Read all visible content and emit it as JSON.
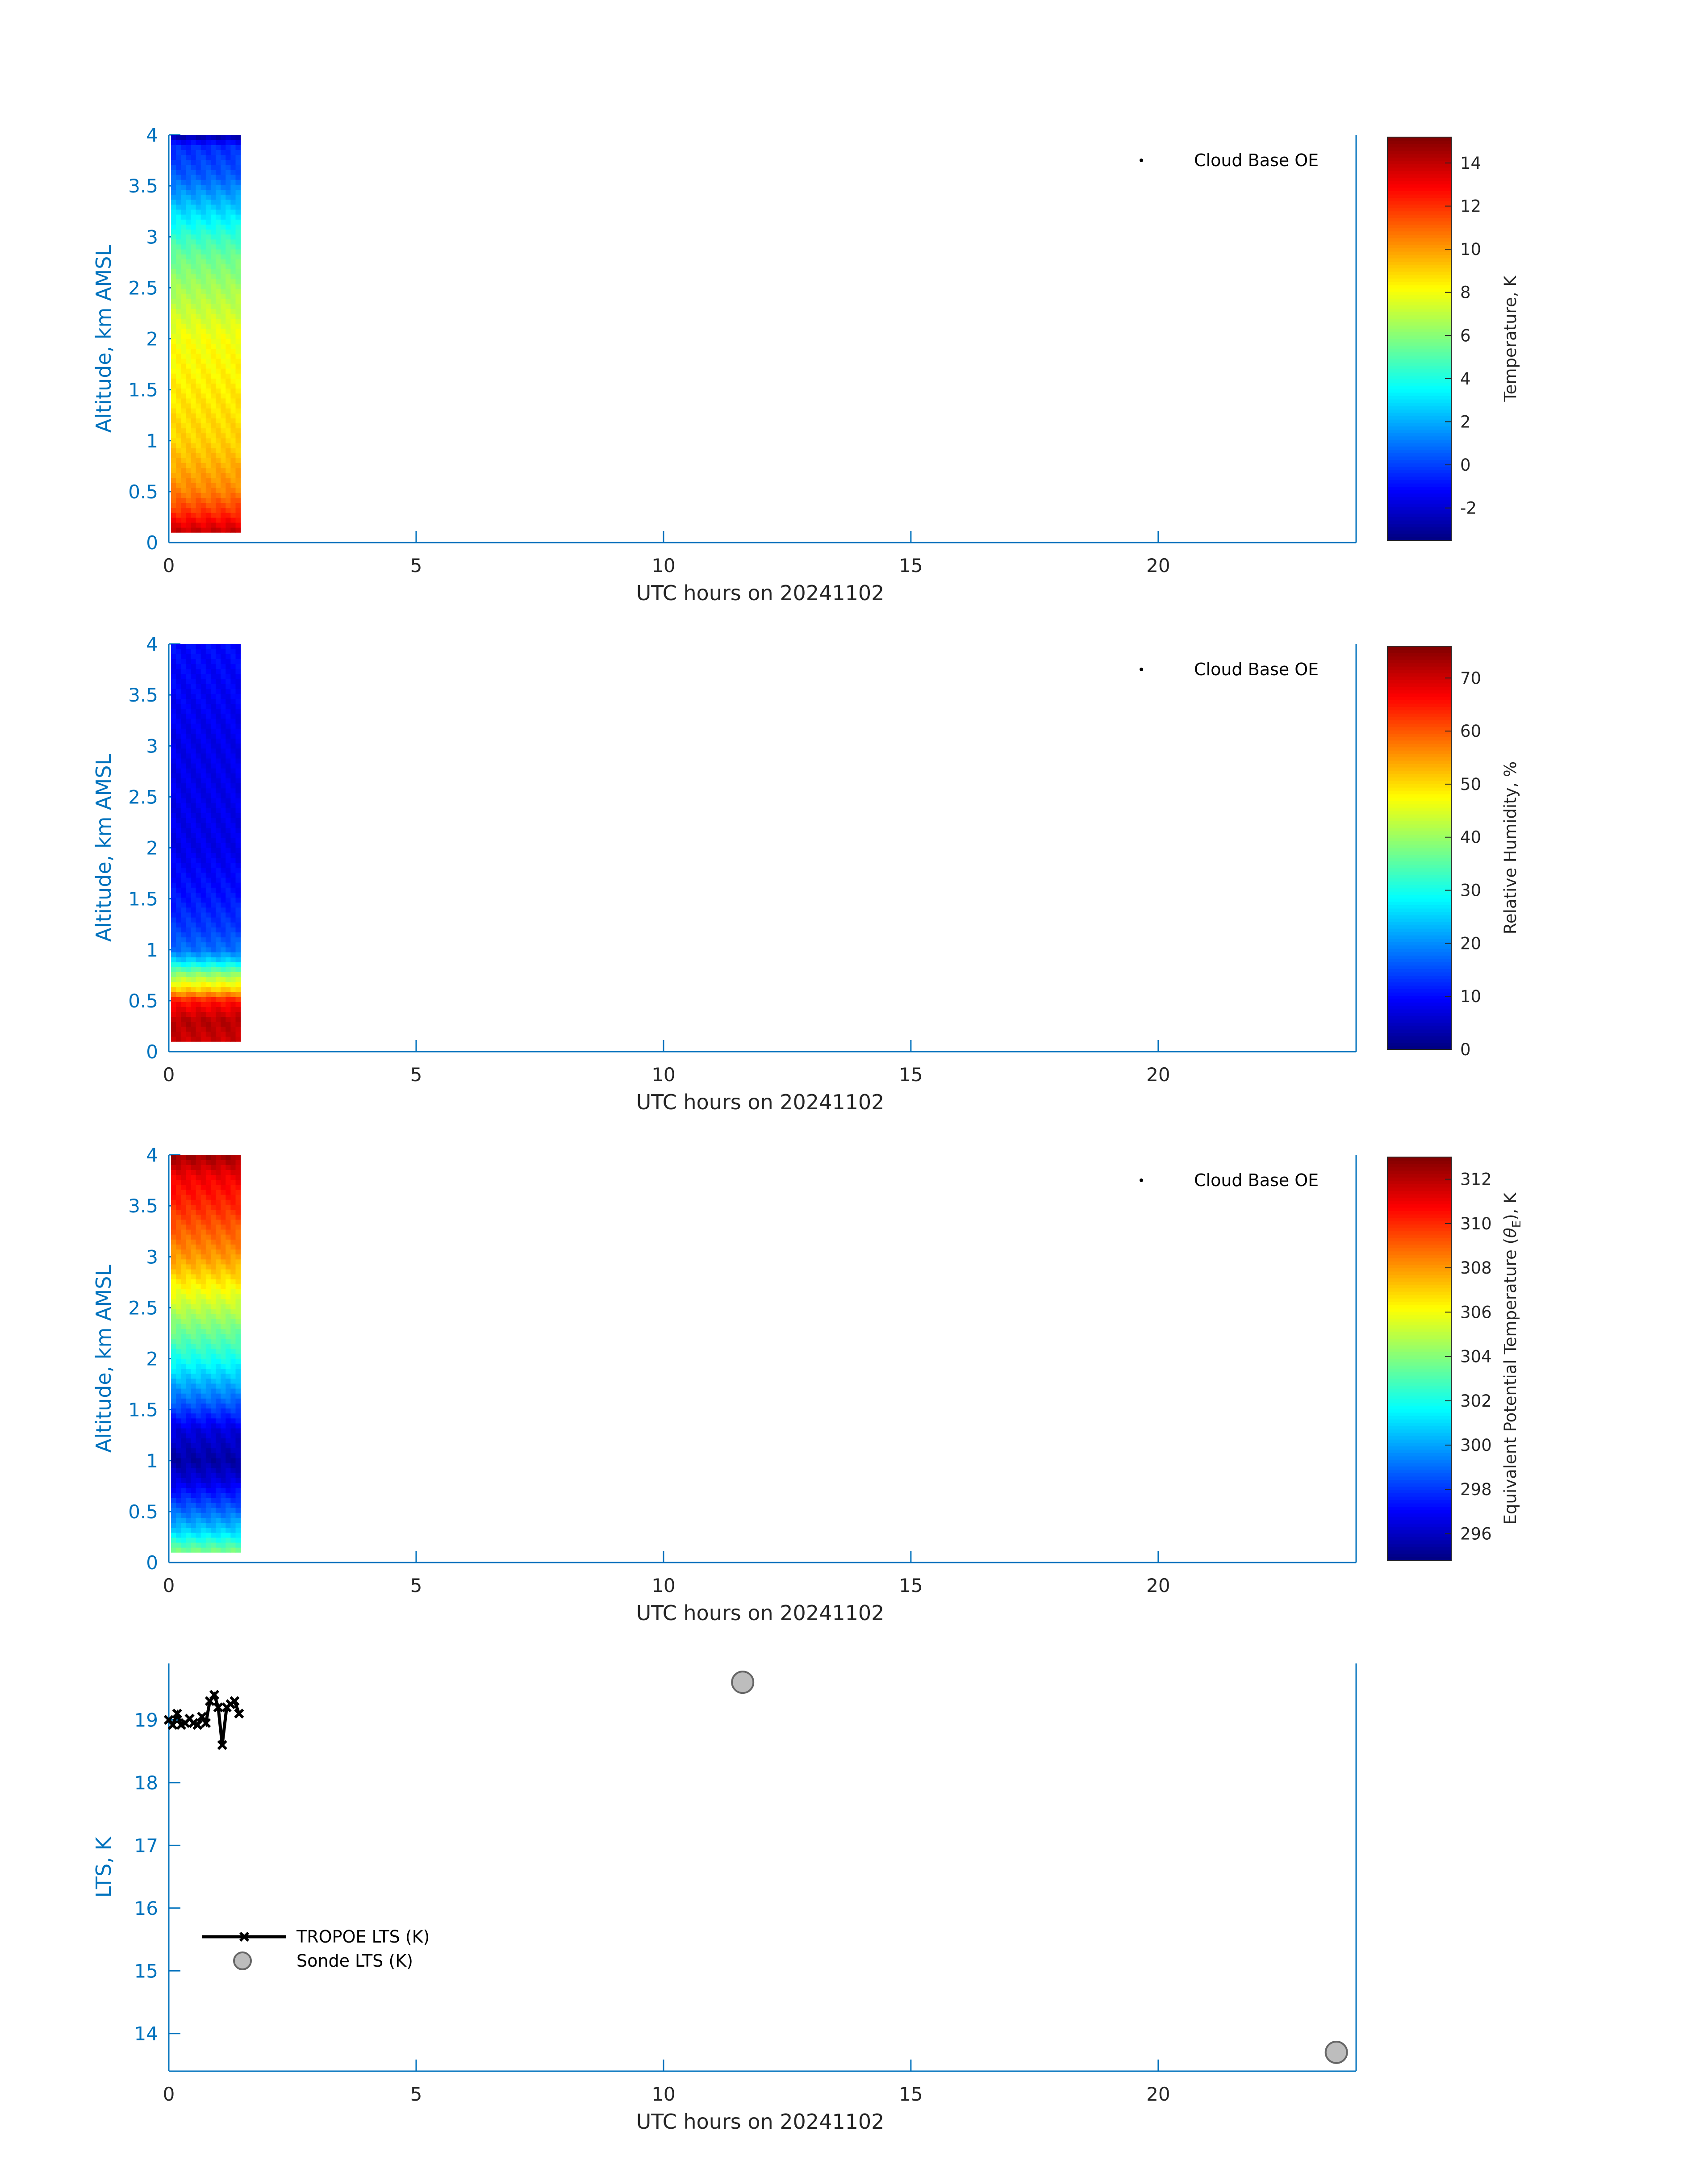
{
  "colors": {
    "axis": "#0072BD",
    "text_dark": "#262626",
    "tropoe_line": "#000000",
    "sonde_fill": "#BDBDBD",
    "sonde_edge": "#666666"
  },
  "chart_data": [
    {
      "type": "heatmap",
      "panel": "temperature",
      "xlabel": "UTC hours on 20241102",
      "ylabel": "Altitude, km AMSL",
      "xlim": [
        0,
        24
      ],
      "ylim": [
        0,
        4
      ],
      "xticks": [
        "0",
        "5",
        "10",
        "15",
        "20"
      ],
      "yticks": [
        "0",
        "0.5",
        "1",
        "1.5",
        "2",
        "2.5",
        "3",
        "3.5",
        "4"
      ],
      "colormap": "jet",
      "clim": [
        -3.5,
        15.2
      ],
      "colorbar_label": "Temperature, K",
      "colorbar_ticks": [
        "-2",
        "0",
        "2",
        "4",
        "6",
        "8",
        "10",
        "12",
        "14"
      ],
      "data_time_range_hours": [
        0,
        1.45
      ],
      "profile_altitude_km": [
        0.1,
        0.3,
        0.5,
        0.8,
        1.0,
        1.5,
        2.0,
        2.5,
        2.8,
        3.0,
        3.3,
        3.6,
        3.9,
        4.0
      ],
      "profile_values": [
        14,
        12,
        10.5,
        9.5,
        9,
        8.5,
        8,
        6.5,
        5.5,
        4.5,
        2.5,
        0.5,
        -0.5,
        -3
      ],
      "legend": [
        {
          "label": "Cloud Base OE",
          "marker": "point"
        }
      ],
      "legend_position": "top-right"
    },
    {
      "type": "heatmap",
      "panel": "relative_humidity",
      "xlabel": "UTC hours on 20241102",
      "ylabel": "Altitude, km AMSL",
      "xlim": [
        0,
        24
      ],
      "ylim": [
        0,
        4
      ],
      "xticks": [
        "0",
        "5",
        "10",
        "15",
        "20"
      ],
      "yticks": [
        "0",
        "0.5",
        "1",
        "1.5",
        "2",
        "2.5",
        "3",
        "3.5",
        "4"
      ],
      "colormap": "jet",
      "clim": [
        0,
        76
      ],
      "colorbar_label": "Relative Humidity, %",
      "colorbar_ticks": [
        "0",
        "10",
        "20",
        "30",
        "40",
        "50",
        "60",
        "70"
      ],
      "data_time_range_hours": [
        0,
        1.45
      ],
      "profile_altitude_km": [
        0.1,
        0.3,
        0.5,
        0.6,
        0.75,
        0.9,
        1.0,
        1.2,
        1.5,
        2.0,
        3.0,
        4.0
      ],
      "profile_values": [
        70,
        72,
        65,
        52,
        40,
        25,
        18,
        14,
        11,
        8,
        8,
        10
      ],
      "legend": [
        {
          "label": "Cloud Base OE",
          "marker": "point"
        }
      ],
      "legend_position": "top-right"
    },
    {
      "type": "heatmap",
      "panel": "equivalent_potential_temperature",
      "xlabel": "UTC hours on 20241102",
      "ylabel": "Altitude, km AMSL",
      "xlim": [
        0,
        24
      ],
      "ylim": [
        0,
        4
      ],
      "xticks": [
        "0",
        "5",
        "10",
        "15",
        "20"
      ],
      "yticks": [
        "0",
        "0.5",
        "1",
        "1.5",
        "2",
        "2.5",
        "3",
        "3.5",
        "4"
      ],
      "colormap": "jet",
      "clim": [
        294.8,
        313
      ],
      "colorbar_label": "Equivalent Potential Temperature (θE), K",
      "colorbar_label_parts": [
        "Equivalent Potential Temperature (",
        "θ",
        "E",
        "), K"
      ],
      "colorbar_ticks": [
        "296",
        "298",
        "300",
        "302",
        "304",
        "306",
        "308",
        "310",
        "312"
      ],
      "data_time_range_hours": [
        0,
        1.45
      ],
      "profile_altitude_km": [
        0.1,
        0.3,
        0.5,
        0.8,
        1.0,
        1.3,
        1.6,
        2.0,
        2.5,
        3.0,
        3.5,
        3.8,
        4.0
      ],
      "profile_values": [
        304,
        301,
        299,
        296.5,
        295.5,
        296.5,
        299,
        302,
        305,
        308,
        310,
        311,
        312.5
      ],
      "legend": [
        {
          "label": "Cloud Base OE",
          "marker": "point"
        }
      ],
      "legend_position": "top-right"
    },
    {
      "type": "line",
      "panel": "lts",
      "xlabel": "UTC hours on 20241102",
      "ylabel": "LTS, K",
      "xlim": [
        0,
        24
      ],
      "ylim": [
        13.4,
        19.9
      ],
      "xticks": [
        "0",
        "5",
        "10",
        "15",
        "20"
      ],
      "yticks": [
        "14",
        "15",
        "16",
        "17",
        "18",
        "19"
      ],
      "series": [
        {
          "name": "TROPOE LTS (K)",
          "marker": "x",
          "x": [
            0.0,
            0.08,
            0.17,
            0.25,
            0.33,
            0.42,
            0.5,
            0.58,
            0.67,
            0.75,
            0.83,
            0.92,
            1.0,
            1.08,
            1.17,
            1.25,
            1.33,
            1.42
          ],
          "y": [
            19.0,
            18.92,
            19.1,
            18.92,
            18.95,
            19.02,
            18.95,
            18.92,
            19.05,
            18.95,
            19.3,
            19.4,
            19.2,
            18.6,
            19.2,
            19.25,
            19.3,
            19.1
          ]
        },
        {
          "name": "Sonde LTS (K)",
          "marker": "circle",
          "x": [
            11.6,
            23.6
          ],
          "y": [
            19.6,
            13.7
          ]
        }
      ],
      "legend_position": "lower-left"
    }
  ]
}
